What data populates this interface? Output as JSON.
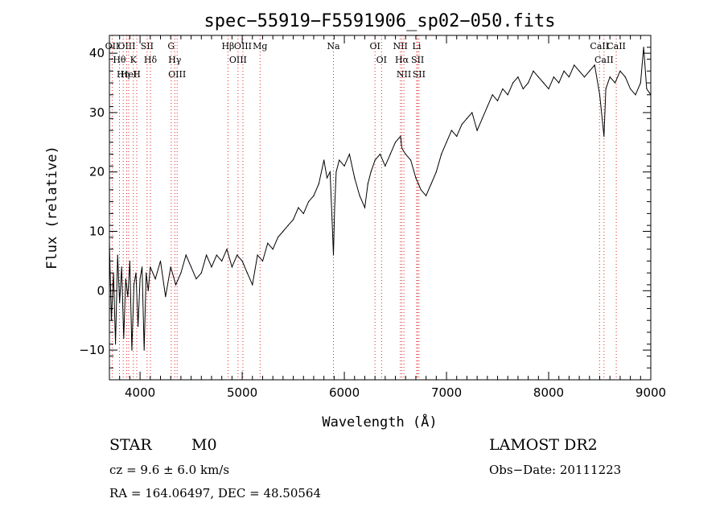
{
  "chart_data": {
    "type": "line",
    "title": "spec−55919−F5591906_sp02−050.fits",
    "xlabel": "Wavelength (Å)",
    "ylabel": "Flux (relative)",
    "xlim": [
      3700,
      9000
    ],
    "ylim": [
      -15,
      43
    ],
    "x_ticks": [
      4000,
      5000,
      6000,
      7000,
      8000,
      9000
    ],
    "x_tick_labels": [
      "4000",
      "5000",
      "6000",
      "7000",
      "8000",
      "9000"
    ],
    "y_ticks": [
      -10,
      0,
      10,
      20,
      30,
      40
    ],
    "y_tick_labels": [
      "−10",
      "0",
      "10",
      "20",
      "30",
      "40"
    ],
    "grid": false,
    "series": [
      {
        "color": "#000000",
        "x": [
          3700,
          3720,
          3740,
          3760,
          3780,
          3800,
          3820,
          3840,
          3860,
          3880,
          3900,
          3920,
          3940,
          3960,
          3980,
          4000,
          4020,
          4040,
          4060,
          4080,
          4100,
          4150,
          4200,
          4250,
          4300,
          4350,
          4400,
          4450,
          4500,
          4550,
          4600,
          4650,
          4700,
          4750,
          4800,
          4850,
          4900,
          4950,
          5000,
          5050,
          5100,
          5150,
          5200,
          5250,
          5300,
          5350,
          5400,
          5450,
          5500,
          5550,
          5600,
          5650,
          5700,
          5750,
          5800,
          5830,
          5860,
          5880,
          5893,
          5905,
          5920,
          5950,
          6000,
          6050,
          6100,
          6150,
          6200,
          6230,
          6260,
          6300,
          6350,
          6400,
          6450,
          6500,
          6550,
          6563,
          6600,
          6650,
          6700,
          6750,
          6800,
          6850,
          6900,
          6950,
          7000,
          7050,
          7100,
          7150,
          7200,
          7250,
          7300,
          7350,
          7400,
          7450,
          7500,
          7550,
          7600,
          7650,
          7700,
          7750,
          7800,
          7850,
          7900,
          7950,
          8000,
          8050,
          8100,
          8150,
          8200,
          8250,
          8300,
          8350,
          8400,
          8450,
          8500,
          8542,
          8560,
          8600,
          8650,
          8700,
          8750,
          8800,
          8850,
          8900,
          8930,
          8960,
          9000
        ],
        "y": [
          8,
          -5,
          3,
          -9,
          6,
          -2,
          4,
          -8,
          2,
          -1,
          5,
          -10,
          1,
          3,
          -6,
          2,
          4,
          -10,
          3,
          0,
          4,
          2,
          5,
          -1,
          4,
          1,
          3,
          6,
          4,
          2,
          3,
          6,
          4,
          6,
          5,
          7,
          4,
          6,
          5,
          3,
          1,
          6,
          5,
          8,
          7,
          9,
          10,
          11,
          12,
          14,
          13,
          15,
          16,
          18,
          22,
          19,
          20,
          12,
          6,
          14,
          20,
          22,
          21,
          23,
          19,
          16,
          14,
          18,
          20,
          22,
          23,
          21,
          23,
          25,
          26,
          24,
          23,
          22,
          19,
          17,
          16,
          18,
          20,
          23,
          25,
          27,
          26,
          28,
          29,
          30,
          27,
          29,
          31,
          33,
          32,
          34,
          33,
          35,
          36,
          34,
          35,
          37,
          36,
          35,
          34,
          36,
          35,
          37,
          36,
          38,
          37,
          36,
          37,
          38,
          33,
          26,
          34,
          36,
          35,
          37,
          36,
          34,
          33,
          35,
          41,
          34,
          33
        ]
      }
    ],
    "lines": [
      {
        "label": "Hθ",
        "x": 3798
      },
      {
        "label": "OII",
        "x": 3727
      },
      {
        "label": "OIII",
        "x": 3869
      },
      {
        "label": "HeI",
        "x": 3889
      },
      {
        "label": "Hη",
        "x": 3835
      },
      {
        "label": "K",
        "x": 3934
      },
      {
        "label": "H",
        "x": 3968
      },
      {
        "label": "SII",
        "x": 4069
      },
      {
        "label": "Hδ",
        "x": 4102
      },
      {
        "label": "OIII",
        "x": 4363
      },
      {
        "label": "Hγ",
        "x": 4340
      },
      {
        "label": "G",
        "x": 4305
      },
      {
        "label": "OIII",
        "x": 4959
      },
      {
        "label": "OIII",
        "x": 5007
      },
      {
        "label": "Hβ",
        "x": 4861
      },
      {
        "label": "Mg",
        "x": 5175
      },
      {
        "label": "Na",
        "x": 5893
      },
      {
        "label": "OI",
        "x": 6300
      },
      {
        "label": "OI",
        "x": 6364
      },
      {
        "label": "Hα",
        "x": 6563
      },
      {
        "label": "NII",
        "x": 6548
      },
      {
        "label": "NII",
        "x": 6583
      },
      {
        "label": "SII",
        "x": 6717
      },
      {
        "label": "SII",
        "x": 6731
      },
      {
        "label": "Li",
        "x": 6708
      },
      {
        "label": "CaII",
        "x": 8498
      },
      {
        "label": "CaII",
        "x": 8542
      },
      {
        "label": "CaII",
        "x": 8662
      }
    ]
  },
  "info": {
    "class_label": "STAR",
    "subclass_label": "M0",
    "survey_label": "LAMOST DR2",
    "cz_text": "cz = 9.6 ± 6.0 km/s",
    "obs_date_text": "Obs−Date: 20111223",
    "radec_text": "RA = 164.06497, DEC =  48.50564"
  }
}
